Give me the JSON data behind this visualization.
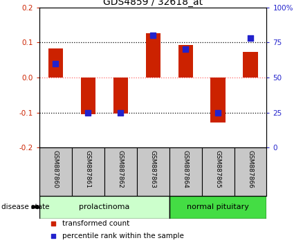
{
  "title": "GDS4859 / 32618_at",
  "samples": [
    "GSM887860",
    "GSM887861",
    "GSM887862",
    "GSM887863",
    "GSM887864",
    "GSM887865",
    "GSM887866"
  ],
  "transformed_count": [
    0.082,
    -0.105,
    -0.103,
    0.127,
    0.093,
    -0.128,
    0.073
  ],
  "percentile_rank_pct": [
    60,
    25,
    25,
    80,
    70,
    25,
    78
  ],
  "ylim": [
    -0.2,
    0.2
  ],
  "yticks_left": [
    -0.2,
    -0.1,
    0.0,
    0.1,
    0.2
  ],
  "yticks_right": [
    0,
    25,
    50,
    75,
    100
  ],
  "bar_color": "#cc2200",
  "dot_color": "#2222cc",
  "bar_width": 0.45,
  "groups": [
    {
      "label": "prolactinoma",
      "indices": [
        0,
        1,
        2,
        3
      ],
      "color": "#ccffcc"
    },
    {
      "label": "normal pituitary",
      "indices": [
        4,
        5,
        6
      ],
      "color": "#44dd44"
    }
  ],
  "group_label": "disease state",
  "legend_items": [
    {
      "label": "transformed count",
      "color": "#cc2200"
    },
    {
      "label": "percentile rank within the sample",
      "color": "#2222cc"
    }
  ],
  "background_color": "#ffffff",
  "plot_bg": "#ffffff",
  "zero_line_color": "#ff6666",
  "left_axis_color": "#cc2200",
  "right_axis_color": "#2222cc",
  "title_fontsize": 10,
  "tick_fontsize": 7.5,
  "sample_label_fontsize": 6.5,
  "group_fontsize": 8,
  "legend_fontsize": 7.5
}
